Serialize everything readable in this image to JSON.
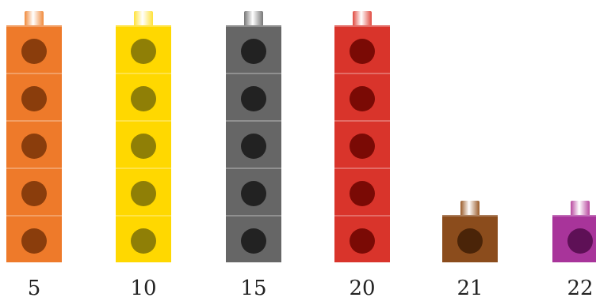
{
  "towers": [
    {
      "label": "5",
      "cubes": 5,
      "color": "#ee7a2a",
      "dot": "#8a3d0c",
      "peg": "#f08a3c"
    },
    {
      "label": "10",
      "cubes": 5,
      "color": "#ffd800",
      "dot": "#8f7f06",
      "peg": "#ffe23a"
    },
    {
      "label": "15",
      "cubes": 5,
      "color": "#666666",
      "dot": "#222222",
      "peg": "#777777"
    },
    {
      "label": "20",
      "cubes": 5,
      "color": "#d9342b",
      "dot": "#7a0a05",
      "peg": "#e04a40"
    },
    {
      "label": "21",
      "cubes": 1,
      "color": "#8b4c1c",
      "dot": "#4a2408",
      "peg": "#9a5a28"
    },
    {
      "label": "22",
      "cubes": 1,
      "color": "#a8349a",
      "dot": "#5e1056",
      "peg": "#b8489f"
    }
  ]
}
